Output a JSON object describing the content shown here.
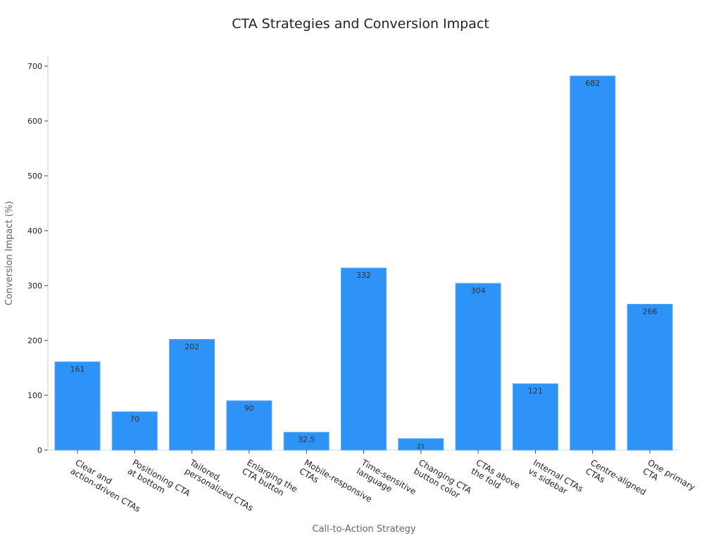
{
  "chart_data": {
    "type": "bar",
    "title": "CTA Strategies and Conversion Impact",
    "xlabel": "Call-to-Action Strategy",
    "ylabel": "Conversion Impact (%)",
    "ylim": [
      0,
      720
    ],
    "yticks": [
      0,
      100,
      200,
      300,
      400,
      500,
      600,
      700
    ],
    "grid": false,
    "categories": [
      [
        "Clear and",
        "action-driven CTAs"
      ],
      [
        "Positioning CTA",
        "at bottom"
      ],
      [
        "Tailored,",
        "personalized CTAs"
      ],
      [
        "Enlarging the",
        "CTA button"
      ],
      [
        "Mobile-responsive",
        "CTAs"
      ],
      [
        "Time-sensitive",
        "language"
      ],
      [
        "Changing CTA",
        "button color"
      ],
      [
        "CTAs above",
        "the fold"
      ],
      [
        "Internal CTAs",
        "vs sidebar"
      ],
      [
        "Centre-aligned",
        "CTAs"
      ],
      [
        "One primary",
        "CTA"
      ]
    ],
    "values": [
      161,
      70,
      202,
      90,
      32.5,
      332,
      21,
      304,
      121,
      682,
      266
    ],
    "bar_color": "#2e93f7"
  }
}
